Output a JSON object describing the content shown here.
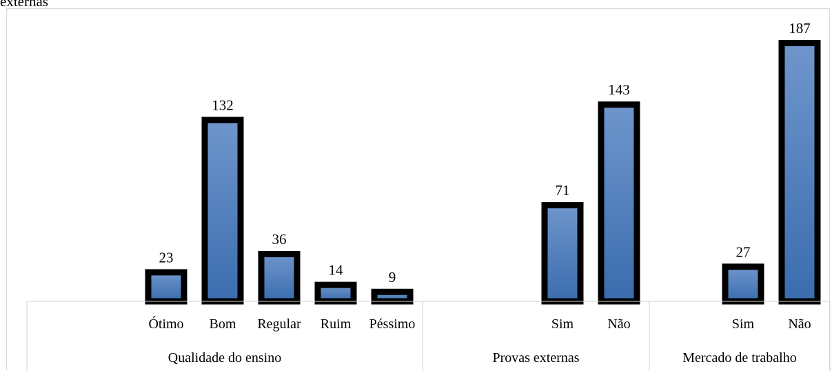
{
  "caption": "externas",
  "chart_data": {
    "type": "bar",
    "title": "",
    "xlabel": "",
    "ylabel": "",
    "ylim": [
      0,
      187
    ],
    "grid": false,
    "legend": "none",
    "colors": {
      "bar_top": "#6f96cc",
      "bar_bottom": "#3a6cae",
      "bar_border": "#000000",
      "axis": "#d0d0d0"
    },
    "groups": [
      {
        "name": "Qualidade do ensino",
        "categories": [
          "Ótimo",
          "Bom",
          "Regular",
          "Ruim",
          "Péssimo"
        ],
        "values": [
          23,
          132,
          36,
          14,
          9
        ]
      },
      {
        "name": "Provas externas",
        "categories": [
          "Sim",
          "Não"
        ],
        "values": [
          71,
          143
        ]
      },
      {
        "name": "Mercado de trabalho",
        "categories": [
          "Sim",
          "Não"
        ],
        "values": [
          27,
          187
        ]
      }
    ]
  }
}
